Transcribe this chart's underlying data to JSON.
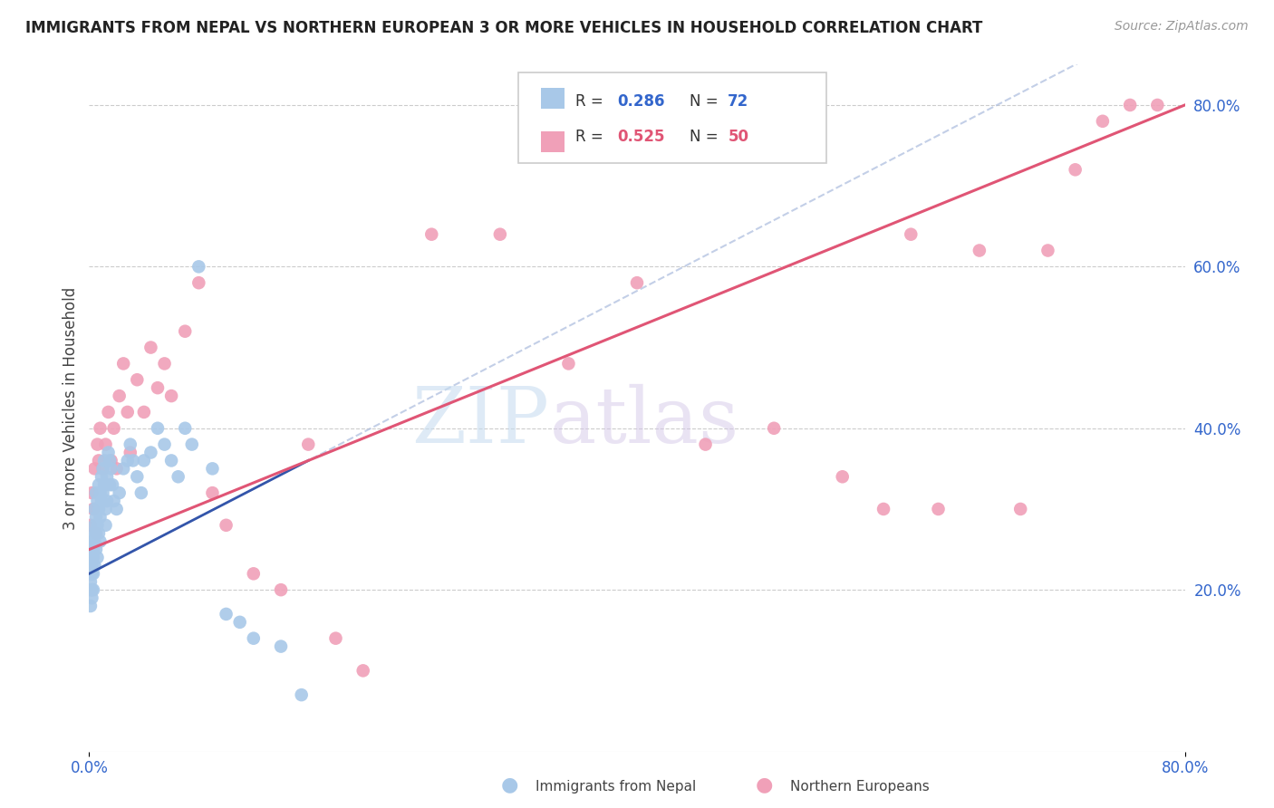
{
  "title": "IMMIGRANTS FROM NEPAL VS NORTHERN EUROPEAN 3 OR MORE VEHICLES IN HOUSEHOLD CORRELATION CHART",
  "source": "Source: ZipAtlas.com",
  "ylabel": "3 or more Vehicles in Household",
  "series1_label": "Immigrants from Nepal",
  "series1_color": "#a8c8e8",
  "series1_R": 0.286,
  "series1_N": 72,
  "series2_label": "Northern Europeans",
  "series2_color": "#f0a0b8",
  "series2_R": 0.525,
  "series2_N": 50,
  "xmin": 0.0,
  "xmax": 0.8,
  "ymin": 0.0,
  "ymax": 0.85,
  "axis_color": "#3366cc",
  "grid_color": "#cccccc",
  "watermark_zip": "ZIP",
  "watermark_atlas": "atlas",
  "nepal_x": [
    0.001,
    0.001,
    0.001,
    0.001,
    0.001,
    0.002,
    0.002,
    0.002,
    0.002,
    0.002,
    0.002,
    0.003,
    0.003,
    0.003,
    0.003,
    0.003,
    0.004,
    0.004,
    0.004,
    0.004,
    0.005,
    0.005,
    0.005,
    0.005,
    0.006,
    0.006,
    0.006,
    0.007,
    0.007,
    0.007,
    0.008,
    0.008,
    0.008,
    0.009,
    0.009,
    0.01,
    0.01,
    0.011,
    0.011,
    0.012,
    0.012,
    0.013,
    0.013,
    0.014,
    0.015,
    0.015,
    0.016,
    0.017,
    0.018,
    0.02,
    0.022,
    0.025,
    0.028,
    0.03,
    0.032,
    0.035,
    0.038,
    0.04,
    0.045,
    0.05,
    0.055,
    0.06,
    0.065,
    0.07,
    0.075,
    0.08,
    0.09,
    0.1,
    0.11,
    0.12,
    0.14,
    0.155
  ],
  "nepal_y": [
    0.2,
    0.22,
    0.18,
    0.24,
    0.21,
    0.23,
    0.2,
    0.25,
    0.22,
    0.19,
    0.26,
    0.27,
    0.25,
    0.22,
    0.24,
    0.2,
    0.28,
    0.26,
    0.23,
    0.3,
    0.29,
    0.27,
    0.25,
    0.32,
    0.31,
    0.28,
    0.24,
    0.33,
    0.3,
    0.27,
    0.32,
    0.29,
    0.26,
    0.34,
    0.31,
    0.35,
    0.32,
    0.36,
    0.33,
    0.3,
    0.28,
    0.34,
    0.31,
    0.37,
    0.36,
    0.33,
    0.35,
    0.33,
    0.31,
    0.3,
    0.32,
    0.35,
    0.36,
    0.38,
    0.36,
    0.34,
    0.32,
    0.36,
    0.37,
    0.4,
    0.38,
    0.36,
    0.34,
    0.4,
    0.38,
    0.6,
    0.35,
    0.17,
    0.16,
    0.14,
    0.13,
    0.07
  ],
  "northern_x": [
    0.001,
    0.002,
    0.003,
    0.004,
    0.005,
    0.006,
    0.007,
    0.008,
    0.01,
    0.012,
    0.014,
    0.016,
    0.018,
    0.02,
    0.022,
    0.025,
    0.028,
    0.03,
    0.035,
    0.04,
    0.045,
    0.05,
    0.055,
    0.06,
    0.07,
    0.08,
    0.09,
    0.1,
    0.12,
    0.14,
    0.16,
    0.18,
    0.2,
    0.25,
    0.3,
    0.35,
    0.4,
    0.45,
    0.5,
    0.55,
    0.58,
    0.6,
    0.62,
    0.65,
    0.68,
    0.7,
    0.72,
    0.74,
    0.76,
    0.78
  ],
  "northern_y": [
    0.28,
    0.32,
    0.3,
    0.35,
    0.27,
    0.38,
    0.36,
    0.4,
    0.35,
    0.38,
    0.42,
    0.36,
    0.4,
    0.35,
    0.44,
    0.48,
    0.42,
    0.37,
    0.46,
    0.42,
    0.5,
    0.45,
    0.48,
    0.44,
    0.52,
    0.58,
    0.32,
    0.28,
    0.22,
    0.2,
    0.38,
    0.14,
    0.1,
    0.64,
    0.64,
    0.48,
    0.58,
    0.38,
    0.4,
    0.34,
    0.3,
    0.64,
    0.3,
    0.62,
    0.3,
    0.62,
    0.72,
    0.78,
    0.8,
    0.8
  ],
  "nepal_line_x": [
    0.0,
    0.16
  ],
  "nepal_line_y": [
    0.22,
    0.36
  ],
  "northern_line_x": [
    0.0,
    0.8
  ],
  "northern_line_y": [
    0.25,
    0.8
  ]
}
